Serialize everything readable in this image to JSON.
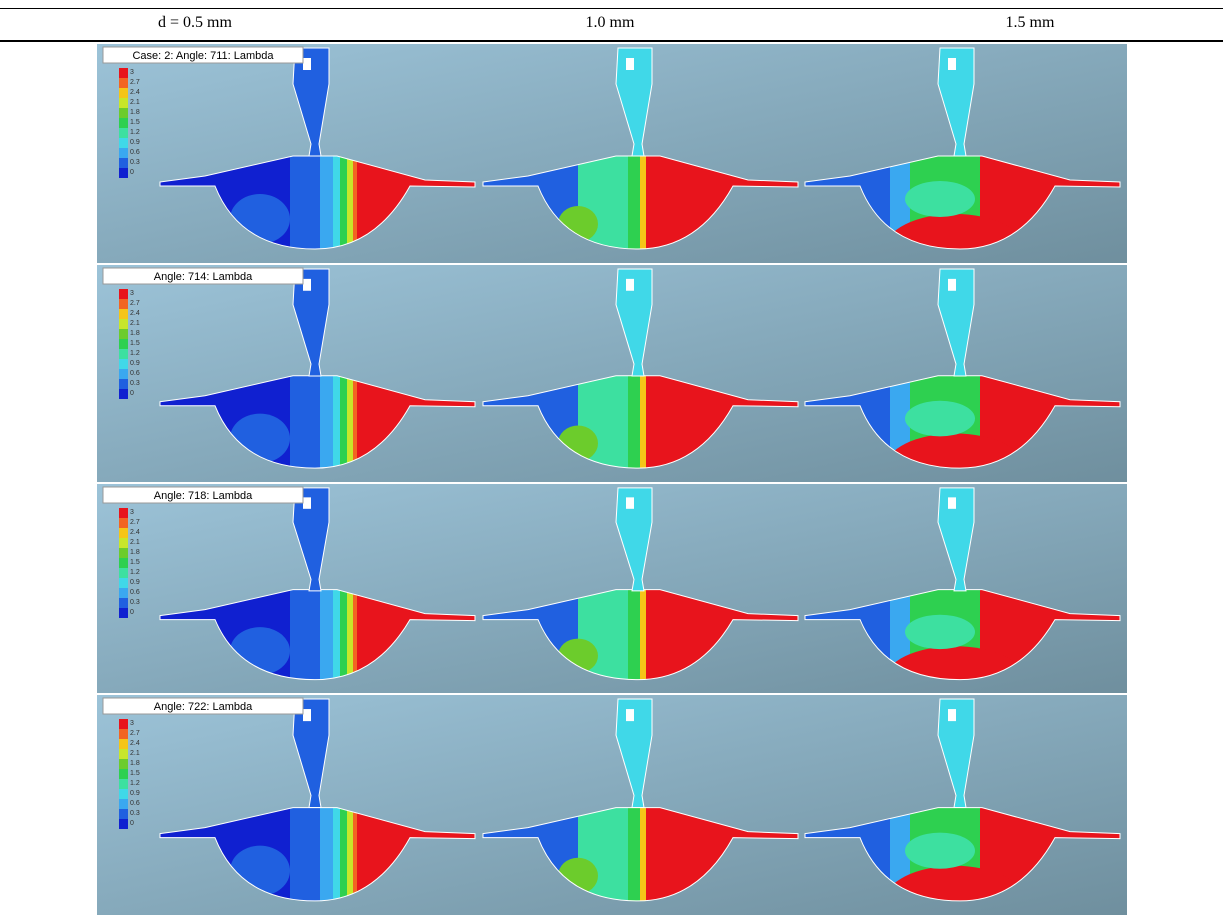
{
  "header": {
    "columns": [
      "d = 0.5 mm",
      "1.0 mm",
      "1.5 mm"
    ]
  },
  "legend": {
    "labels": [
      "3",
      "2.7",
      "2.4",
      "2.1",
      "1.8",
      "1.5",
      "1.2",
      "0.9",
      "0.6",
      "0.3",
      "0"
    ],
    "colors": [
      "#e8141c",
      "#f26522",
      "#f5c518",
      "#c8e62a",
      "#6ccc2c",
      "#2ed050",
      "#3de0a0",
      "#40d8e8",
      "#3aa8f0",
      "#2060e0",
      "#1020d0"
    ]
  },
  "rows": [
    {
      "label": "Case: 2: Angle: 711: Lambda"
    },
    {
      "label": "Angle: 714: Lambda"
    },
    {
      "label": "Angle: 718: Lambda"
    },
    {
      "label": "Angle: 722: Lambda"
    }
  ]
}
